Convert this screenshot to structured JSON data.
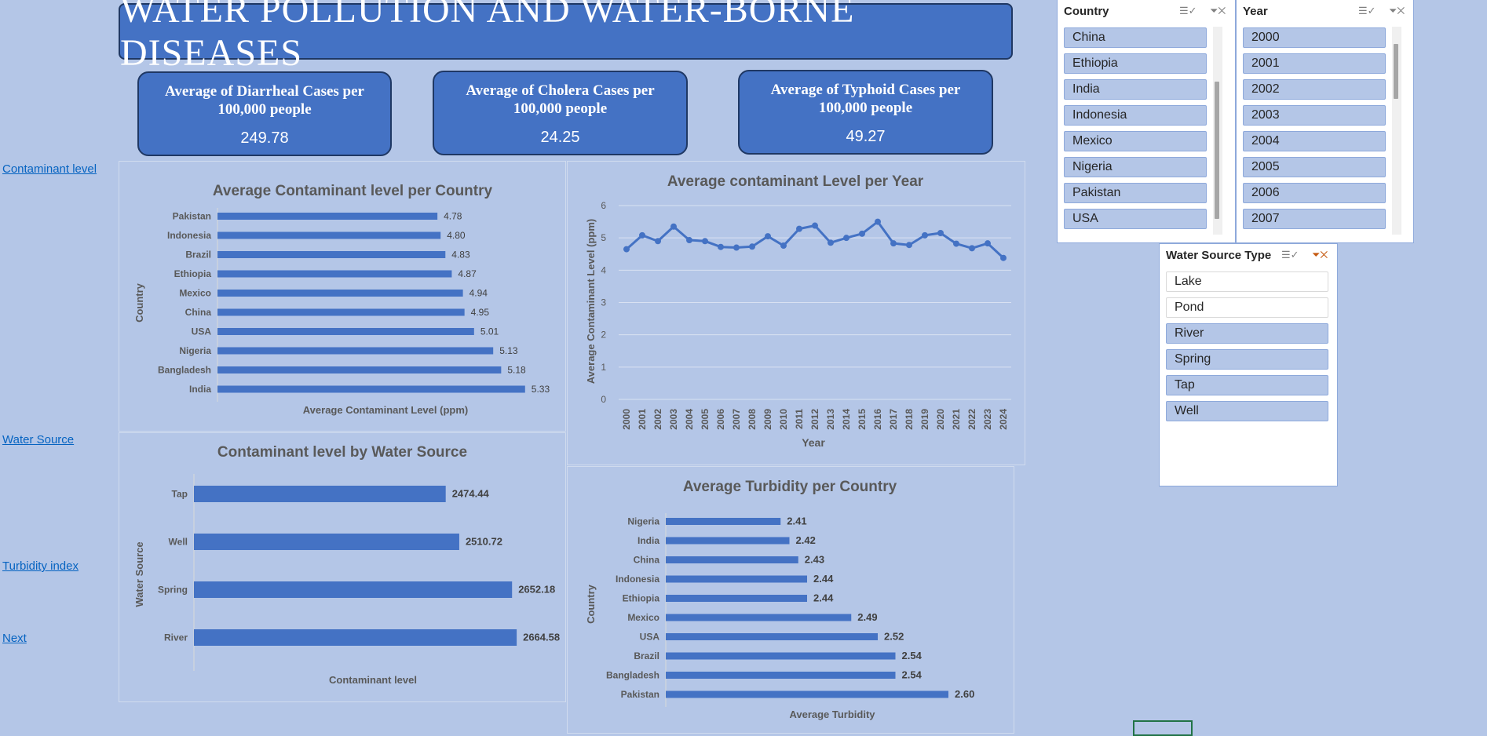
{
  "title": "WATER POLLUTION AND WATER-BORNE DISEASES",
  "kpis": [
    {
      "label": "Average of Diarrheal Cases per 100,000 people",
      "value": "249.78"
    },
    {
      "label": "Average of Cholera Cases per 100,000 people",
      "value": "24.25"
    },
    {
      "label": "Average of Typhoid Cases per 100,000 people",
      "value": "49.27"
    }
  ],
  "links": {
    "contaminant": "Contaminant level",
    "water_source": "Water Source ",
    "turbidity": "Turbidity index",
    "next": "Next"
  },
  "slicers": {
    "country": {
      "title": "Country",
      "items": [
        "China",
        "Ethiopia",
        "India",
        "Indonesia",
        "Mexico",
        "Nigeria",
        "Pakistan",
        "USA"
      ]
    },
    "year": {
      "title": "Year",
      "items": [
        "2000",
        "2001",
        "2002",
        "2003",
        "2004",
        "2005",
        "2006",
        "2007"
      ]
    },
    "water_source": {
      "title": "Water Source Type",
      "items": [
        "Lake",
        "Pond",
        "River",
        "Spring",
        "Tap",
        "Well"
      ],
      "selected": [
        false,
        false,
        true,
        true,
        true,
        true
      ]
    }
  },
  "colors": {
    "bar": "#4472c4",
    "background": "#b4c6e7",
    "accent": "#1f3864"
  },
  "icons": {
    "multi_select": "multi-select-icon",
    "clear_filter": "clear-filter-icon"
  },
  "chart_data": [
    {
      "id": "contaminant_country",
      "type": "bar",
      "title": "Average Contaminant level per Country",
      "xlabel": "Average Contaminant Level (ppm)",
      "ylabel": "Country",
      "categories": [
        "Pakistan",
        "Indonesia",
        "Brazil",
        "Ethiopia",
        "Mexico",
        "China",
        "USA",
        "Nigeria",
        "Bangladesh",
        "India"
      ],
      "values": [
        4.78,
        4.8,
        4.83,
        4.87,
        4.94,
        4.95,
        5.01,
        5.13,
        5.18,
        5.33
      ],
      "labels": [
        "4.78",
        "4.80",
        "4.83",
        "4.87",
        "4.94",
        "4.95",
        "5.01",
        "5.13",
        "5.18",
        "5.33"
      ],
      "grid": false
    },
    {
      "id": "contaminant_year",
      "type": "line",
      "title": "Average contaminant Level per Year",
      "xlabel": "Year",
      "ylabel": "Average Contaminant Level (ppm)",
      "x": [
        "2000",
        "2001",
        "2002",
        "2003",
        "2004",
        "2005",
        "2006",
        "2007",
        "2008",
        "2009",
        "2010",
        "2011",
        "2012",
        "2013",
        "2014",
        "2015",
        "2016",
        "2017",
        "2018",
        "2019",
        "2020",
        "2021",
        "2022",
        "2023",
        "2024"
      ],
      "values": [
        4.65,
        5.08,
        4.9,
        5.35,
        4.93,
        4.9,
        4.72,
        4.7,
        4.73,
        5.05,
        4.76,
        5.28,
        5.38,
        4.85,
        5.0,
        5.13,
        5.5,
        4.83,
        4.78,
        5.08,
        5.15,
        4.82,
        4.68,
        4.83,
        4.38
      ],
      "yticks": [
        "0",
        "1",
        "2",
        "3",
        "4",
        "5",
        "6"
      ],
      "ylim": [
        0,
        6
      ],
      "grid": true
    },
    {
      "id": "contaminant_source",
      "type": "bar",
      "title": "Contaminant level by Water Source",
      "xlabel": "Contaminant level",
      "ylabel": "Water Source",
      "categories": [
        "Tap",
        "Well",
        "Spring",
        "River"
      ],
      "values": [
        2474.44,
        2510.72,
        2652.18,
        2664.58
      ],
      "labels": [
        "2474.44",
        "2510.72",
        "2652.18",
        "2664.58"
      ],
      "grid": false
    },
    {
      "id": "turbidity_country",
      "type": "bar",
      "title": "Average Turbidity per Country",
      "xlabel": "Average Turbidity",
      "ylabel": "Country",
      "categories": [
        "Nigeria",
        "India",
        "China",
        "Indonesia",
        "Ethiopia",
        "Mexico",
        "USA",
        "Brazil",
        "Bangladesh",
        "Pakistan"
      ],
      "values": [
        2.41,
        2.42,
        2.43,
        2.44,
        2.44,
        2.49,
        2.52,
        2.54,
        2.54,
        2.6
      ],
      "labels": [
        "2.41",
        "2.42",
        "2.43",
        "2.44",
        "2.44",
        "2.49",
        "2.52",
        "2.54",
        "2.54",
        "2.60"
      ],
      "grid": false
    }
  ]
}
